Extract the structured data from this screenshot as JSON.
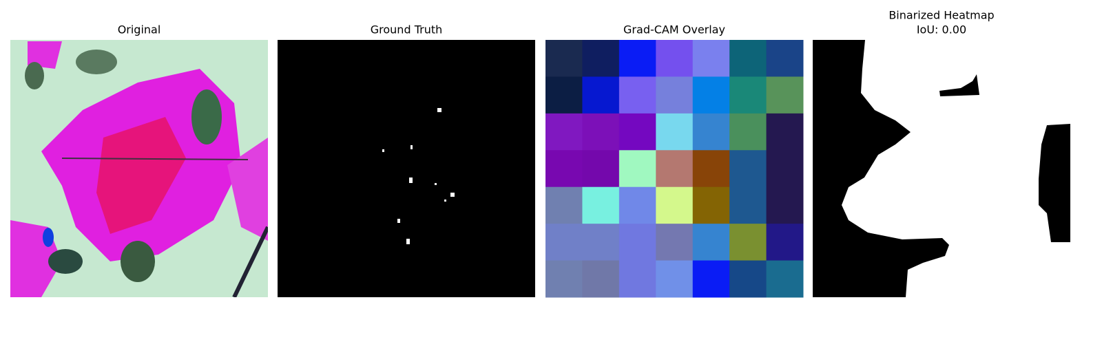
{
  "panels": [
    {
      "title": "Original"
    },
    {
      "title": "Ground Truth"
    },
    {
      "title": "Grad-CAM Overlay"
    },
    {
      "title": "Binarized Heatmap",
      "subtitle": "IoU: 0.00"
    }
  ]
}
